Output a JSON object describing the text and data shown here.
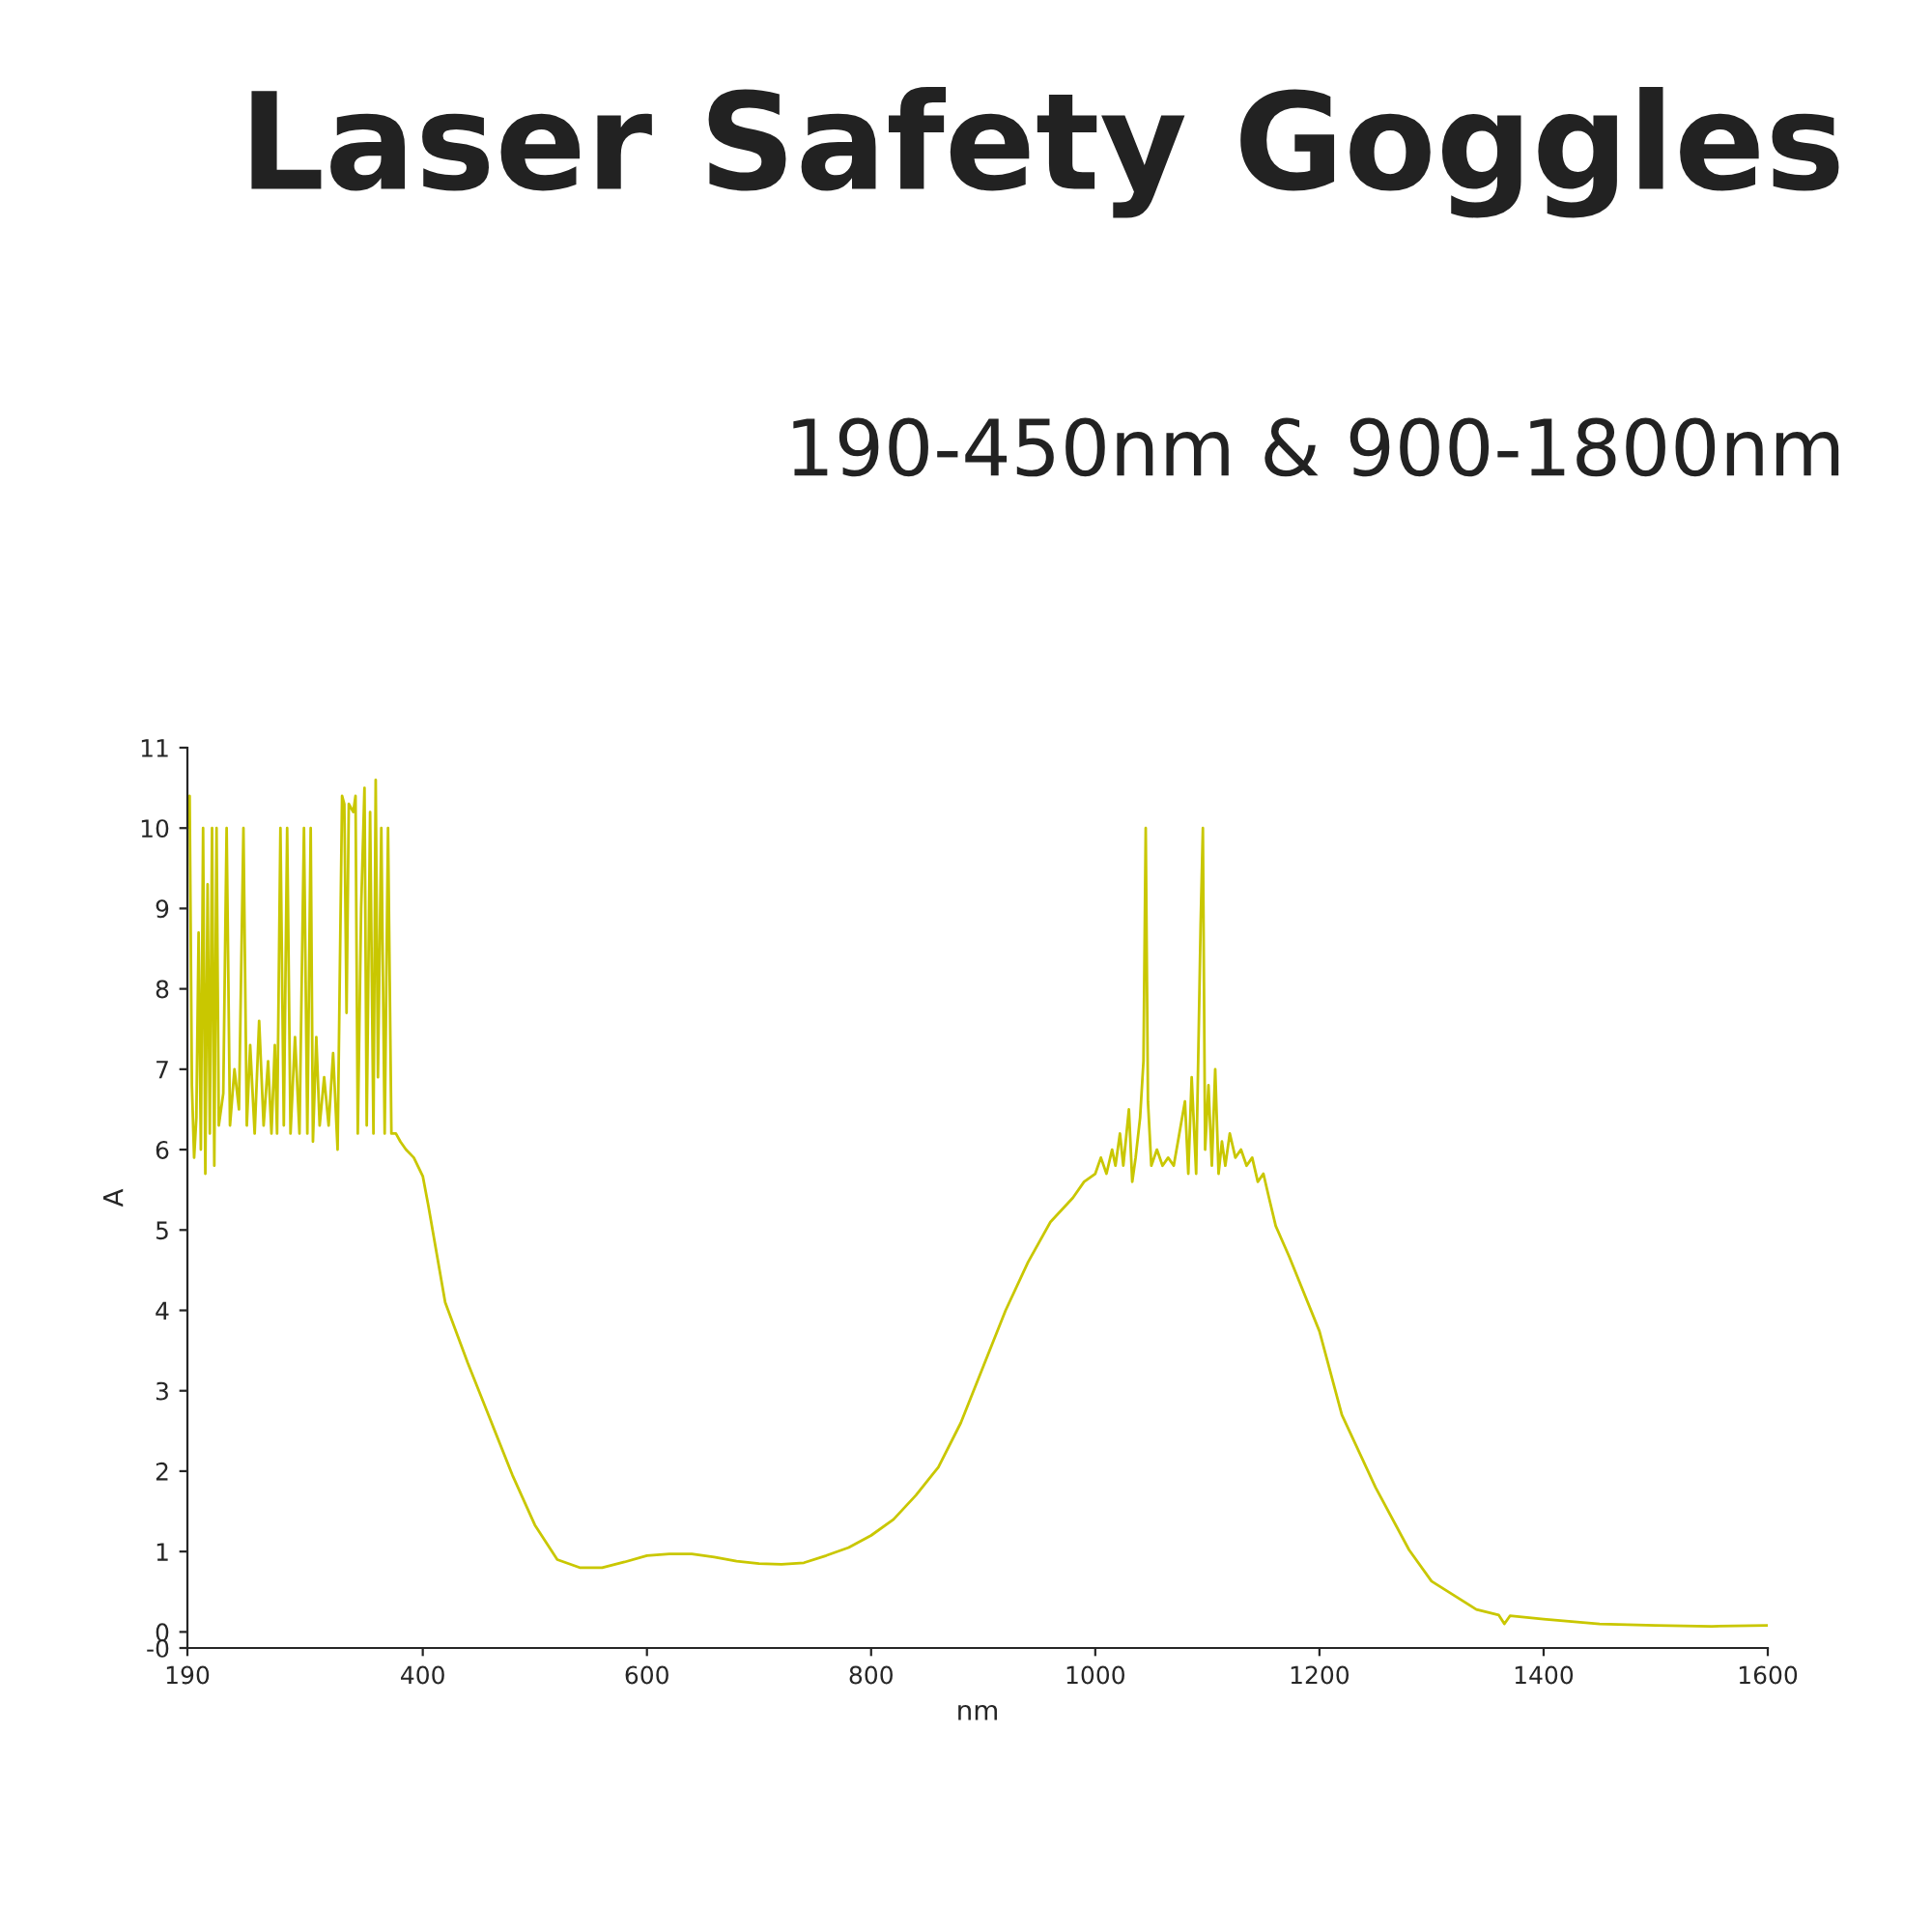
{
  "chart_data": {
    "type": "line",
    "title": "Laser Safety Goggles",
    "subtitle": "190-450nm & 900-1800nm",
    "xlabel": "nm",
    "ylabel": "A",
    "xlim": [
      190,
      1600
    ],
    "xticks": [
      190,
      400,
      600,
      800,
      1000,
      1200,
      1400,
      1600
    ],
    "ylim": [
      -0.2,
      11
    ],
    "yticks": [
      {
        "value": -0.2,
        "label": "-0"
      },
      0,
      1,
      2,
      3,
      4,
      5,
      6,
      7,
      8,
      9,
      10,
      11
    ],
    "grid": false,
    "marker": "none",
    "line_style": "solid",
    "series": [
      {
        "color": "#c9c700",
        "x": [
          190,
          192,
          194,
          196,
          198,
          200,
          202,
          204,
          206,
          208,
          210,
          212,
          214,
          216,
          218,
          222,
          225,
          228,
          232,
          236,
          240,
          243,
          246,
          250,
          254,
          258,
          262,
          265,
          268,
          270,
          273,
          276,
          279,
          282,
          286,
          290,
          294,
          297,
          300,
          302,
          305,
          308,
          312,
          316,
          320,
          324,
          328,
          330,
          332,
          334,
          338,
          340,
          342,
          345,
          348,
          350,
          353,
          356,
          358,
          360,
          363,
          366,
          369,
          372,
          376,
          380,
          385,
          392,
          400,
          405,
          420,
          440,
          460,
          480,
          500,
          520,
          540,
          560,
          580,
          600,
          620,
          640,
          660,
          680,
          700,
          720,
          740,
          760,
          780,
          800,
          820,
          840,
          860,
          880,
          900,
          920,
          940,
          960,
          980,
          990,
          1000,
          1005,
          1010,
          1015,
          1018,
          1022,
          1025,
          1030,
          1033,
          1036,
          1040,
          1043,
          1045,
          1047,
          1050,
          1055,
          1060,
          1065,
          1070,
          1075,
          1080,
          1083,
          1086,
          1090,
          1094,
          1096,
          1098,
          1101,
          1104,
          1107,
          1110,
          1113,
          1116,
          1120,
          1125,
          1130,
          1135,
          1140,
          1145,
          1150,
          1155,
          1161,
          1173,
          1200,
          1220,
          1250,
          1280,
          1300,
          1340,
          1360,
          1365,
          1370,
          1400,
          1450,
          1500,
          1550,
          1600
        ],
        "values": [
          10.0,
          10.4,
          6.8,
          5.9,
          6.4,
          8.7,
          6.0,
          10.0,
          5.7,
          9.3,
          6.2,
          10.0,
          5.8,
          10.0,
          6.3,
          6.7,
          10.0,
          6.3,
          7.0,
          6.5,
          10.0,
          6.3,
          7.3,
          6.2,
          7.6,
          6.3,
          7.1,
          6.2,
          7.3,
          6.2,
          10.0,
          6.3,
          10.0,
          6.2,
          7.4,
          6.2,
          10.0,
          6.2,
          10.0,
          6.1,
          7.4,
          6.3,
          6.9,
          6.3,
          7.2,
          6.0,
          10.4,
          10.3,
          7.7,
          10.3,
          10.2,
          10.4,
          6.2,
          9.0,
          10.5,
          6.3,
          10.2,
          6.2,
          10.6,
          6.9,
          10.0,
          6.2,
          10.0,
          6.2,
          6.2,
          6.1,
          6.0,
          5.9,
          5.67,
          5.3,
          4.1,
          3.35,
          2.65,
          1.95,
          1.33,
          0.9,
          0.8,
          0.8,
          0.87,
          0.95,
          0.97,
          0.97,
          0.93,
          0.88,
          0.85,
          0.84,
          0.86,
          0.95,
          1.05,
          1.2,
          1.4,
          1.7,
          2.05,
          2.6,
          3.3,
          4.0,
          4.6,
          5.1,
          5.4,
          5.6,
          5.7,
          5.9,
          5.7,
          6.0,
          5.8,
          6.2,
          5.8,
          6.5,
          5.6,
          5.9,
          6.4,
          7.1,
          10.0,
          6.6,
          5.8,
          6.0,
          5.8,
          5.9,
          5.8,
          6.2,
          6.6,
          5.7,
          6.9,
          5.7,
          8.8,
          10.0,
          6.0,
          6.8,
          5.8,
          7.0,
          5.7,
          6.1,
          5.8,
          6.2,
          5.9,
          6.0,
          5.8,
          5.9,
          5.6,
          5.7,
          5.4,
          5.05,
          4.67,
          3.74,
          2.7,
          1.8,
          1.02,
          0.63,
          0.28,
          0.21,
          0.1,
          0.2,
          0.16,
          0.1,
          0.08,
          0.07,
          0.08
        ]
      }
    ]
  }
}
